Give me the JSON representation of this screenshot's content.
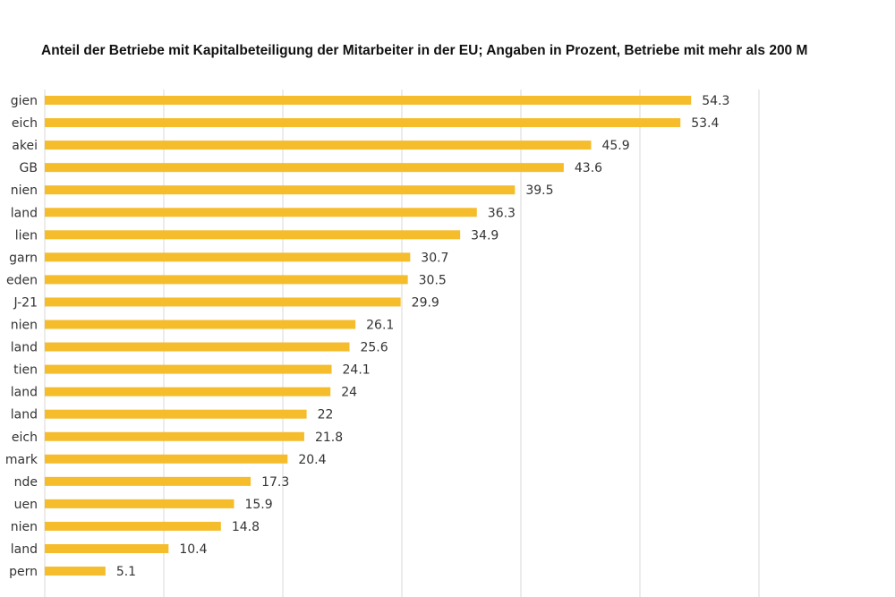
{
  "chart_data": {
    "type": "bar",
    "orientation": "horizontal",
    "title": "Anteil der Betriebe mit Kapitalbeteiligung der Mitarbeiter in der EU; Angaben in Prozent, Betriebe mit mehr als 200 M",
    "categories": [
      "gien",
      "eich",
      "akei",
      "GB",
      "nien",
      "land",
      "lien",
      "garn",
      "eden",
      "J-21",
      "nien",
      "land",
      "tien",
      "land",
      "land",
      "eich",
      "mark",
      "nde",
      "uen",
      "nien",
      "land",
      "pern"
    ],
    "values": [
      54.3,
      53.4,
      45.9,
      43.6,
      39.5,
      36.3,
      34.9,
      30.7,
      30.5,
      29.9,
      26.1,
      25.6,
      24.1,
      24,
      22,
      21.8,
      20.4,
      17.3,
      15.9,
      14.8,
      10.4,
      5.1
    ],
    "value_labels": [
      "54.3",
      "53.4",
      "45.9",
      "43.6",
      "39.5",
      "36.3",
      "34.9",
      "30.7",
      "30.5",
      "29.9",
      "26.1",
      "25.6",
      "24.1",
      "24",
      "22",
      "21.8",
      "20.4",
      "17.3",
      "15.9",
      "14.8",
      "10.4",
      "5.1"
    ],
    "xlim": [
      0,
      70
    ],
    "gridlines": [
      0,
      10,
      20,
      30,
      40,
      50,
      60
    ],
    "grid": true,
    "legend": "none",
    "bar_color": "#F5BC2C"
  }
}
